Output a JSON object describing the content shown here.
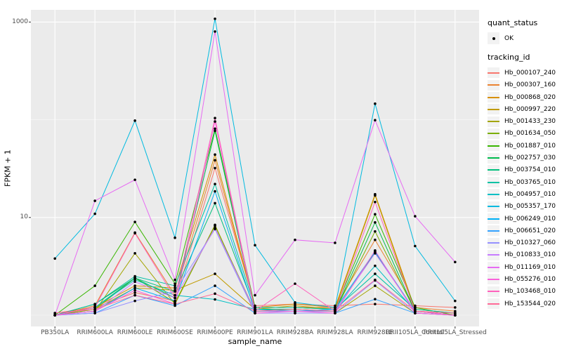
{
  "chart_data": {
    "type": "line",
    "title": "",
    "xlabel": "sample_name",
    "ylabel": "FPKM + 1",
    "y_scale": "log10",
    "y_ticks": [
      {
        "label": "1000",
        "value": 1000
      },
      {
        "label": "10",
        "value": 10
      }
    ],
    "y_minor_values": [
      100,
      1
    ],
    "ylim": [
      0.77,
      1350
    ],
    "panel_bg": "#EBEBEB",
    "grid_color": "#FFFFFF",
    "axis_text_color": "#4D4D4D",
    "tick_mark_color": "#333333",
    "point_color": "#000000",
    "x_categories": [
      "PB350LA",
      "RRIM600LA",
      "RRIM600LE",
      "RRIM600SE",
      "RRIM600PE",
      "RRIM901LA",
      "RRIM928BA",
      "RRIM928LA",
      "RRIM928LE",
      "RRII105LA_Control",
      "RRII105LA_Stressed"
    ],
    "legend": {
      "quant_status_title": "quant_status",
      "quant_status_items": [
        {
          "label": "OK",
          "symbol": "point-icon"
        }
      ],
      "tracking_id_title": "tracking_id"
    },
    "series": [
      {
        "name": "Hb_000107_240",
        "color": "#F8766D",
        "values": [
          1.05,
          1.2,
          1.7,
          1.4,
          32,
          1.25,
          1.3,
          1.25,
          1.3,
          1.25,
          1.2
        ]
      },
      {
        "name": "Hb_000307_160",
        "color": "#EA8331",
        "values": [
          1,
          1.25,
          7.0,
          1.6,
          38.5,
          1.2,
          1.2,
          1.2,
          5.9,
          1.2,
          1.1
        ]
      },
      {
        "name": "Hb_000868_020",
        "color": "#D89000",
        "values": [
          1,
          1.2,
          2.0,
          1.9,
          44,
          1.2,
          1.3,
          1.2,
          17.3,
          1.15,
          1.05
        ]
      },
      {
        "name": "Hb_000997_220",
        "color": "#C09B00",
        "values": [
          1,
          1.15,
          1.9,
          1.8,
          2.65,
          1.15,
          1.25,
          1.15,
          16.8,
          1.1,
          1.05
        ]
      },
      {
        "name": "Hb_001433_230",
        "color": "#A3A500",
        "values": [
          1,
          1.1,
          4.3,
          1.3,
          8.4,
          1.05,
          1.05,
          1.05,
          2.0,
          1.05,
          1
        ]
      },
      {
        "name": "Hb_001634_050",
        "color": "#7CAE00",
        "values": [
          1,
          1.15,
          2.4,
          1.35,
          8.2,
          1.1,
          1.1,
          1.1,
          7.2,
          1.1,
          1
        ]
      },
      {
        "name": "Hb_001887_010",
        "color": "#39B600",
        "values": [
          1,
          2.0,
          9.0,
          2.1,
          81,
          1.2,
          1.2,
          1.15,
          10.8,
          1.2,
          1
        ]
      },
      {
        "name": "Hb_002757_030",
        "color": "#00BB4E",
        "values": [
          1,
          1.3,
          2.4,
          1.5,
          77,
          1.1,
          1.1,
          1.1,
          8.9,
          1.1,
          1
        ]
      },
      {
        "name": "Hb_003754_010",
        "color": "#00BF7D",
        "values": [
          1,
          1.2,
          2.4,
          1.75,
          14,
          1.15,
          1.15,
          1.1,
          4.4,
          1.1,
          1
        ]
      },
      {
        "name": "Hb_003765_010",
        "color": "#00C1A3",
        "values": [
          1,
          1.3,
          2.5,
          2.0,
          22,
          1.2,
          1.2,
          1.15,
          2.65,
          1.15,
          1.05
        ]
      },
      {
        "name": "Hb_004957_010",
        "color": "#00BFC4",
        "values": [
          1,
          1.2,
          2.3,
          1.6,
          1.45,
          1.15,
          1.1,
          1.1,
          3.2,
          1.1,
          1
        ]
      },
      {
        "name": "Hb_005357_170",
        "color": "#00BAE0",
        "values": [
          3.8,
          10.9,
          98,
          6.2,
          1080,
          5.2,
          1.35,
          1.2,
          146,
          5.1,
          1.4
        ]
      },
      {
        "name": "Hb_006249_010",
        "color": "#00B0F6",
        "values": [
          1,
          1.1,
          1.9,
          1.4,
          18.5,
          1.1,
          1.1,
          1.15,
          4.5,
          1.1,
          1
        ]
      },
      {
        "name": "Hb_006651_020",
        "color": "#35A2FF",
        "values": [
          1,
          1.05,
          1.6,
          1.25,
          2.0,
          1.05,
          1.05,
          1.05,
          1.46,
          1.05,
          1
        ]
      },
      {
        "name": "Hb_010327_060",
        "color": "#9590FF",
        "values": [
          1,
          1.05,
          1.4,
          1.75,
          7.6,
          1.05,
          1.05,
          1.05,
          2.27,
          1.05,
          1
        ]
      },
      {
        "name": "Hb_010833_010",
        "color": "#C77CFF",
        "values": [
          1,
          1.1,
          2.2,
          1.5,
          7.8,
          1.1,
          1.1,
          1.1,
          4.3,
          1.1,
          1
        ]
      },
      {
        "name": "Hb_011169_010",
        "color": "#E76BF3",
        "values": [
          1,
          14.8,
          24.3,
          2.3,
          800,
          1.6,
          5.9,
          5.5,
          99,
          10.3,
          3.5
        ]
      },
      {
        "name": "Hb_055276_010",
        "color": "#FA62DB",
        "values": [
          1,
          1.1,
          1.8,
          1.3,
          96,
          1.05,
          1.1,
          1.05,
          4.6,
          1.05,
          1
        ]
      },
      {
        "name": "Hb_103468_010",
        "color": "#FF62BC",
        "values": [
          1,
          1.2,
          6.9,
          1.5,
          104,
          1.1,
          2.1,
          1.1,
          14.4,
          1.1,
          1
        ]
      },
      {
        "name": "Hb_153544_020",
        "color": "#FF6A98",
        "values": [
          1.05,
          1.15,
          1.6,
          1.3,
          1.66,
          1.1,
          1.15,
          1.1,
          2.3,
          1.1,
          1.05
        ]
      }
    ]
  }
}
